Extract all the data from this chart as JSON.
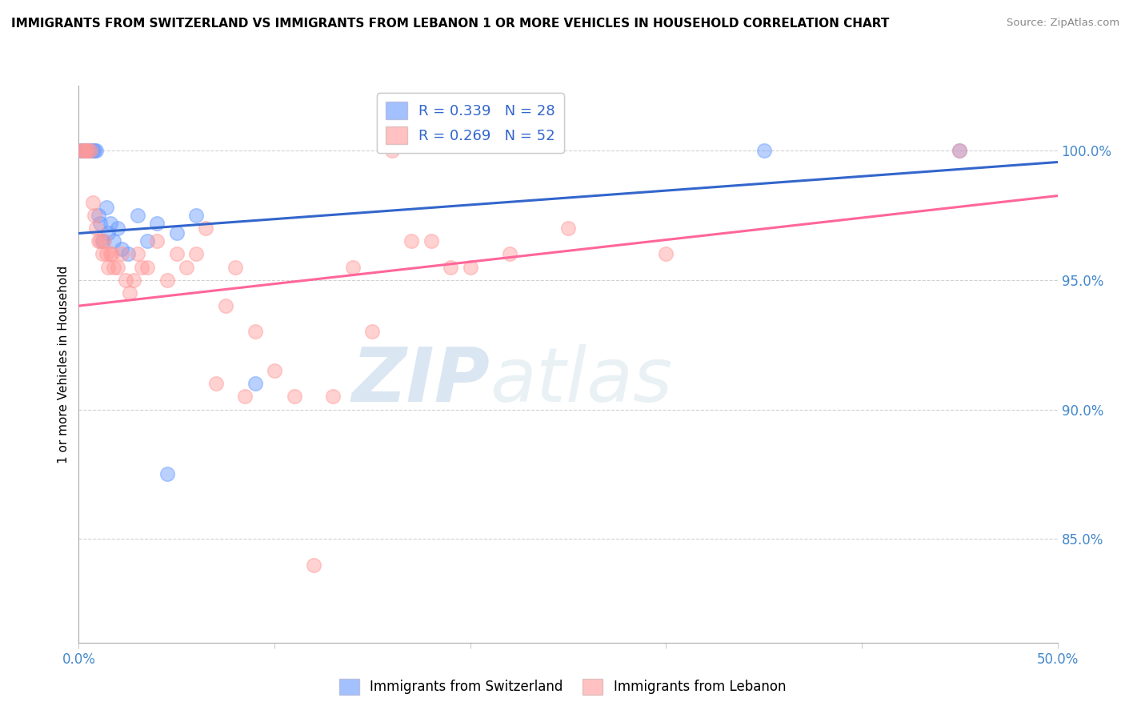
{
  "title": "IMMIGRANTS FROM SWITZERLAND VS IMMIGRANTS FROM LEBANON 1 OR MORE VEHICLES IN HOUSEHOLD CORRELATION CHART",
  "source_text": "Source: ZipAtlas.com",
  "ylabel": "1 or more Vehicles in Household",
  "xlim": [
    0.0,
    50.0
  ],
  "ylim": [
    81.0,
    102.5
  ],
  "x_ticks": [
    0.0,
    10.0,
    20.0,
    30.0,
    40.0,
    50.0
  ],
  "x_tick_labels": [
    "0.0%",
    "",
    "",
    "",
    "",
    "50.0%"
  ],
  "y_ticks": [
    85.0,
    90.0,
    95.0,
    100.0
  ],
  "y_tick_labels": [
    "85.0%",
    "90.0%",
    "95.0%",
    "100.0%"
  ],
  "legend_blue_label": "R = 0.339   N = 28",
  "legend_pink_label": "R = 0.269   N = 52",
  "legend_bottom_blue": "Immigrants from Switzerland",
  "legend_bottom_pink": "Immigrants from Lebanon",
  "blue_color": "#6699ff",
  "pink_color": "#ff9999",
  "blue_line_color": "#3366cc",
  "pink_line_color": "#ff6699",
  "watermark_zip": "ZIP",
  "watermark_atlas": "atlas",
  "blue_scatter_x": [
    0.1,
    0.2,
    0.3,
    0.4,
    0.5,
    0.6,
    0.7,
    0.8,
    0.9,
    1.0,
    1.1,
    1.2,
    1.4,
    1.5,
    1.6,
    1.8,
    2.0,
    2.2,
    2.5,
    3.0,
    3.5,
    4.0,
    4.5,
    5.0,
    6.0,
    9.0,
    35.0,
    45.0
  ],
  "blue_scatter_y": [
    100.0,
    100.0,
    100.0,
    100.0,
    100.0,
    100.0,
    100.0,
    100.0,
    100.0,
    97.5,
    97.2,
    96.5,
    97.8,
    96.8,
    97.2,
    96.5,
    97.0,
    96.2,
    96.0,
    97.5,
    96.5,
    97.2,
    87.5,
    96.8,
    97.5,
    91.0,
    100.0,
    100.0
  ],
  "pink_scatter_x": [
    0.1,
    0.2,
    0.3,
    0.4,
    0.5,
    0.6,
    0.7,
    0.8,
    0.9,
    1.0,
    1.1,
    1.2,
    1.3,
    1.4,
    1.5,
    1.6,
    1.7,
    1.8,
    2.0,
    2.2,
    2.4,
    2.6,
    2.8,
    3.0,
    3.2,
    3.5,
    4.0,
    4.5,
    5.0,
    5.5,
    6.0,
    6.5,
    7.0,
    7.5,
    8.0,
    8.5,
    9.0,
    10.0,
    11.0,
    12.0,
    13.0,
    14.0,
    15.0,
    16.0,
    17.0,
    18.0,
    19.0,
    20.0,
    22.0,
    25.0,
    30.0,
    45.0
  ],
  "pink_scatter_y": [
    100.0,
    100.0,
    100.0,
    100.0,
    100.0,
    100.0,
    98.0,
    97.5,
    97.0,
    96.5,
    96.5,
    96.0,
    96.5,
    96.0,
    95.5,
    96.0,
    96.0,
    95.5,
    95.5,
    96.0,
    95.0,
    94.5,
    95.0,
    96.0,
    95.5,
    95.5,
    96.5,
    95.0,
    96.0,
    95.5,
    96.0,
    97.0,
    91.0,
    94.0,
    95.5,
    90.5,
    93.0,
    91.5,
    90.5,
    84.0,
    90.5,
    95.5,
    93.0,
    100.0,
    96.5,
    96.5,
    95.5,
    95.5,
    96.0,
    97.0,
    96.0,
    100.0
  ]
}
